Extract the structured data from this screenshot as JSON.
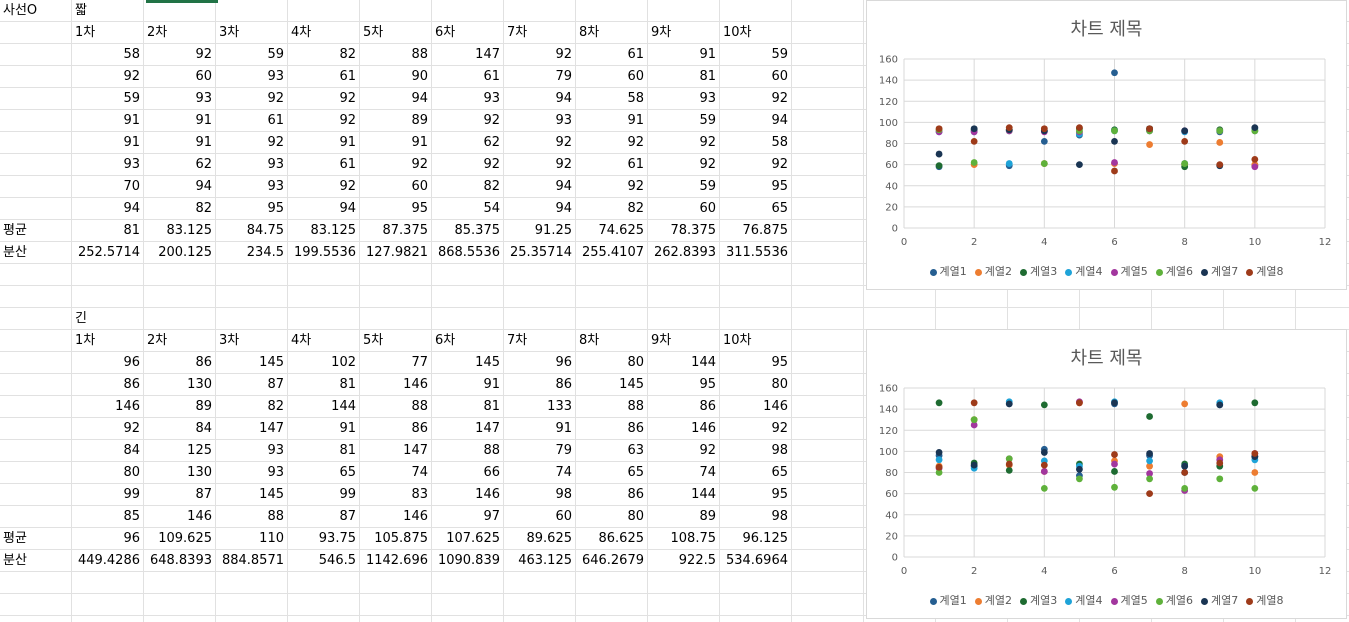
{
  "sheet": {
    "cornerLabel": "사선O",
    "table1": {
      "label": "짧",
      "headers": [
        "1차",
        "2차",
        "3차",
        "4차",
        "5차",
        "6차",
        "7차",
        "8차",
        "9차",
        "10차"
      ],
      "rows": [
        [
          "58",
          "92",
          "59",
          "82",
          "88",
          "147",
          "92",
          "61",
          "91",
          "59"
        ],
        [
          "92",
          "60",
          "93",
          "61",
          "90",
          "61",
          "79",
          "60",
          "81",
          "60"
        ],
        [
          "59",
          "93",
          "92",
          "92",
          "94",
          "93",
          "94",
          "58",
          "93",
          "92"
        ],
        [
          "91",
          "91",
          "61",
          "92",
          "89",
          "92",
          "93",
          "91",
          "59",
          "94"
        ],
        [
          "91",
          "91",
          "92",
          "91",
          "91",
          "62",
          "92",
          "92",
          "92",
          "58"
        ],
        [
          "93",
          "62",
          "93",
          "61",
          "92",
          "92",
          "92",
          "61",
          "92",
          "92"
        ],
        [
          "70",
          "94",
          "93",
          "92",
          "60",
          "82",
          "94",
          "92",
          "59",
          "95"
        ],
        [
          "94",
          "82",
          "95",
          "94",
          "95",
          "54",
          "94",
          "82",
          "60",
          "65"
        ]
      ],
      "avgLabel": "평균",
      "avg": [
        "81",
        "83.125",
        "84.75",
        "83.125",
        "87.375",
        "85.375",
        "91.25",
        "74.625",
        "78.375",
        "76.875"
      ],
      "varLabel": "분산",
      "var": [
        "252.5714",
        "200.125",
        "234.5",
        "199.5536",
        "127.9821",
        "868.5536",
        "25.35714",
        "255.4107",
        "262.8393",
        "311.5536"
      ]
    },
    "table2": {
      "label": "긴",
      "headers": [
        "1차",
        "2차",
        "3차",
        "4차",
        "5차",
        "6차",
        "7차",
        "8차",
        "9차",
        "10차"
      ],
      "rows": [
        [
          "96",
          "86",
          "145",
          "102",
          "77",
          "145",
          "96",
          "80",
          "144",
          "95"
        ],
        [
          "86",
          "130",
          "87",
          "81",
          "146",
          "91",
          "86",
          "145",
          "95",
          "80"
        ],
        [
          "146",
          "89",
          "82",
          "144",
          "88",
          "81",
          "133",
          "88",
          "86",
          "146"
        ],
        [
          "92",
          "84",
          "147",
          "91",
          "86",
          "147",
          "91",
          "86",
          "146",
          "92"
        ],
        [
          "84",
          "125",
          "93",
          "81",
          "147",
          "88",
          "79",
          "63",
          "92",
          "98"
        ],
        [
          "80",
          "130",
          "93",
          "65",
          "74",
          "66",
          "74",
          "65",
          "74",
          "65"
        ],
        [
          "99",
          "87",
          "145",
          "99",
          "83",
          "146",
          "98",
          "86",
          "144",
          "95"
        ],
        [
          "85",
          "146",
          "88",
          "87",
          "146",
          "97",
          "60",
          "80",
          "89",
          "98"
        ]
      ],
      "avgLabel": "평균",
      "avg": [
        "96",
        "109.625",
        "110",
        "93.75",
        "105.875",
        "107.625",
        "89.625",
        "86.625",
        "108.75",
        "96.125"
      ],
      "varLabel": "분산",
      "var": [
        "449.4286",
        "648.8393",
        "884.8571",
        "546.5",
        "1142.696",
        "1090.839",
        "463.125",
        "646.2679",
        "922.5",
        "534.6964"
      ]
    }
  },
  "chart_data": [
    {
      "type": "scatter",
      "title": "차트 제목",
      "xlim": [
        0,
        12
      ],
      "ylim": [
        0,
        160
      ],
      "xticks": [
        "0",
        "2",
        "4",
        "6",
        "8",
        "10",
        "12"
      ],
      "yticks": [
        "0",
        "20",
        "40",
        "60",
        "80",
        "100",
        "120",
        "140",
        "160"
      ],
      "grid": true,
      "legend_position": "bottom",
      "x": [
        1,
        2,
        3,
        4,
        5,
        6,
        7,
        8,
        9,
        10
      ],
      "series": [
        {
          "name": "계열1",
          "color": "#255e91",
          "values": [
            58,
            92,
            59,
            82,
            88,
            147,
            92,
            61,
            91,
            59
          ]
        },
        {
          "name": "계열2",
          "color": "#ed7d31",
          "values": [
            92,
            60,
            93,
            61,
            90,
            61,
            79,
            60,
            81,
            60
          ]
        },
        {
          "name": "계열3",
          "color": "#1e6b31",
          "values": [
            59,
            93,
            92,
            92,
            94,
            93,
            94,
            58,
            93,
            92
          ]
        },
        {
          "name": "계열4",
          "color": "#1ea3d8",
          "values": [
            91,
            91,
            61,
            92,
            89,
            92,
            93,
            91,
            59,
            94
          ]
        },
        {
          "name": "계열5",
          "color": "#a2369e",
          "values": [
            91,
            91,
            92,
            91,
            91,
            62,
            92,
            92,
            92,
            58
          ]
        },
        {
          "name": "계열6",
          "color": "#5fb13b",
          "values": [
            93,
            62,
            93,
            61,
            92,
            92,
            92,
            61,
            92,
            92
          ]
        },
        {
          "name": "계열7",
          "color": "#1a3553",
          "values": [
            70,
            94,
            93,
            92,
            60,
            82,
            94,
            92,
            59,
            95
          ]
        },
        {
          "name": "계열8",
          "color": "#9e3b1a",
          "values": [
            94,
            82,
            95,
            94,
            95,
            54,
            94,
            82,
            60,
            65
          ]
        }
      ]
    },
    {
      "type": "scatter",
      "title": "차트 제목",
      "xlim": [
        0,
        12
      ],
      "ylim": [
        0,
        160
      ],
      "xticks": [
        "0",
        "2",
        "4",
        "6",
        "8",
        "10",
        "12"
      ],
      "yticks": [
        "0",
        "20",
        "40",
        "60",
        "80",
        "100",
        "120",
        "140",
        "160"
      ],
      "grid": true,
      "legend_position": "bottom",
      "x": [
        1,
        2,
        3,
        4,
        5,
        6,
        7,
        8,
        9,
        10
      ],
      "series": [
        {
          "name": "계열1",
          "color": "#255e91",
          "values": [
            96,
            86,
            145,
            102,
            77,
            145,
            96,
            80,
            144,
            95
          ]
        },
        {
          "name": "계열2",
          "color": "#ed7d31",
          "values": [
            86,
            130,
            87,
            81,
            146,
            91,
            86,
            145,
            95,
            80
          ]
        },
        {
          "name": "계열3",
          "color": "#1e6b31",
          "values": [
            146,
            89,
            82,
            144,
            88,
            81,
            133,
            88,
            86,
            146
          ]
        },
        {
          "name": "계열4",
          "color": "#1ea3d8",
          "values": [
            92,
            84,
            147,
            91,
            86,
            147,
            91,
            86,
            146,
            92
          ]
        },
        {
          "name": "계열5",
          "color": "#a2369e",
          "values": [
            84,
            125,
            93,
            81,
            147,
            88,
            79,
            63,
            92,
            98
          ]
        },
        {
          "name": "계열6",
          "color": "#5fb13b",
          "values": [
            80,
            130,
            93,
            65,
            74,
            66,
            74,
            65,
            74,
            65
          ]
        },
        {
          "name": "계열7",
          "color": "#1a3553",
          "values": [
            99,
            87,
            145,
            99,
            83,
            146,
            98,
            86,
            144,
            95
          ]
        },
        {
          "name": "계열8",
          "color": "#9e3b1a",
          "values": [
            85,
            146,
            88,
            87,
            146,
            97,
            60,
            80,
            89,
            98
          ]
        }
      ]
    }
  ]
}
